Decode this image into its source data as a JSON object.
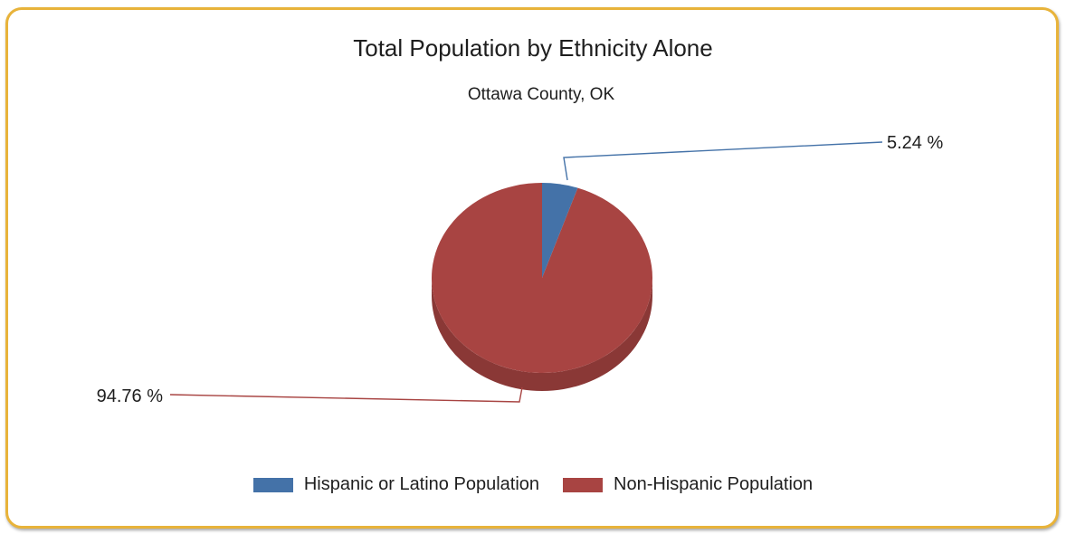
{
  "chart_data": {
    "type": "pie",
    "title": "Total Population by Ethnicity Alone",
    "subtitle": "Ottawa County, OK",
    "slices": [
      {
        "name": "Hispanic or Latino Population",
        "value": 5.24,
        "label": "5.24 %",
        "color": "#4472a8"
      },
      {
        "name": "Non-Hispanic Population",
        "value": 94.76,
        "label": "94.76 %",
        "color": "#a84442"
      }
    ],
    "legend_position": "bottom"
  }
}
